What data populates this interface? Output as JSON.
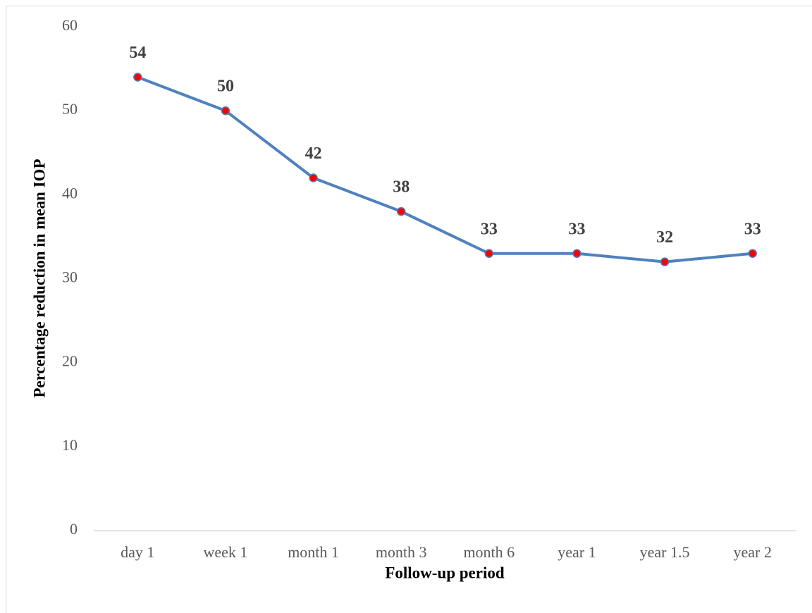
{
  "chart_data": {
    "type": "line",
    "x_label": "Follow-up period",
    "y_label": "Percentage reduction in mean IOP",
    "categories": [
      "day 1",
      "week 1",
      "month 1",
      "month 3",
      "month 6",
      "year 1",
      "year 1.5",
      "year 2"
    ],
    "series": [
      {
        "color": "#4f81bd",
        "marker_color": "#ff0000",
        "values": [
          54,
          50,
          42,
          38,
          33,
          33,
          32,
          33
        ]
      }
    ],
    "ylim": [
      0,
      60
    ],
    "yticks": [
      0,
      10,
      20,
      30,
      40,
      50,
      60
    ],
    "grid": false,
    "data_labels": true
  }
}
